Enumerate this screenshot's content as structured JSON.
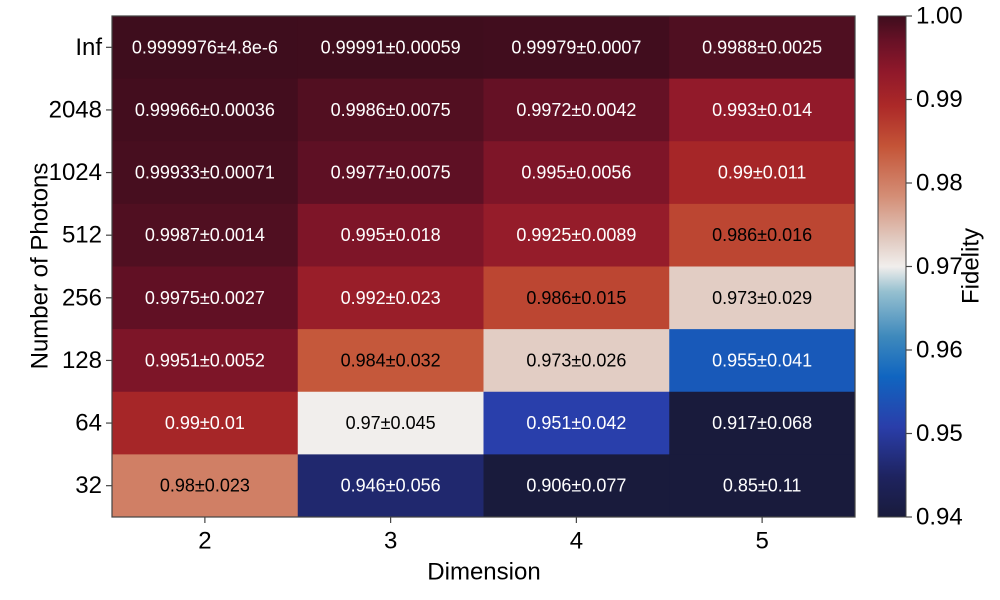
{
  "chart_data": {
    "type": "heatmap",
    "xlabel": "Dimension",
    "ylabel": "Number of Photons",
    "x_categories": [
      "2",
      "3",
      "4",
      "5"
    ],
    "y_categories": [
      "Inf",
      "2048",
      "1024",
      "512",
      "256",
      "128",
      "64",
      "32"
    ],
    "values": [
      [
        0.9999976,
        0.99991,
        0.99979,
        0.9988
      ],
      [
        0.99966,
        0.9986,
        0.9972,
        0.993
      ],
      [
        0.99933,
        0.9977,
        0.995,
        0.99
      ],
      [
        0.9987,
        0.995,
        0.9925,
        0.986
      ],
      [
        0.9975,
        0.992,
        0.986,
        0.973
      ],
      [
        0.9951,
        0.984,
        0.973,
        0.955
      ],
      [
        0.99,
        0.97,
        0.951,
        0.917
      ],
      [
        0.98,
        0.946,
        0.906,
        0.85
      ]
    ],
    "cell_labels": [
      [
        "0.9999976±4.8e-6",
        "0.99991±0.00059",
        "0.99979±0.0007",
        "0.9988±0.0025"
      ],
      [
        "0.99966±0.00036",
        "0.9986±0.0075",
        "0.9972±0.0042",
        "0.993±0.014"
      ],
      [
        "0.99933±0.00071",
        "0.9977±0.0075",
        "0.995±0.0056",
        "0.99±0.011"
      ],
      [
        "0.9987±0.0014",
        "0.995±0.018",
        "0.9925±0.0089",
        "0.986±0.016"
      ],
      [
        "0.9975±0.0027",
        "0.992±0.023",
        "0.986±0.015",
        "0.973±0.029"
      ],
      [
        "0.9951±0.0052",
        "0.984±0.032",
        "0.973±0.026",
        "0.955±0.041"
      ],
      [
        "0.99±0.01",
        "0.97±0.045",
        "0.951±0.042",
        "0.917±0.068"
      ],
      [
        "0.98±0.023",
        "0.946±0.056",
        "0.906±0.077",
        "0.85±0.11"
      ]
    ],
    "colorbar": {
      "label": "Fidelity",
      "range": [
        0.94,
        1.0
      ],
      "ticks": [
        "0.94",
        "0.95",
        "0.96",
        "0.97",
        "0.98",
        "0.99",
        "1.00"
      ],
      "colormap": "balance"
    },
    "grid": false
  }
}
